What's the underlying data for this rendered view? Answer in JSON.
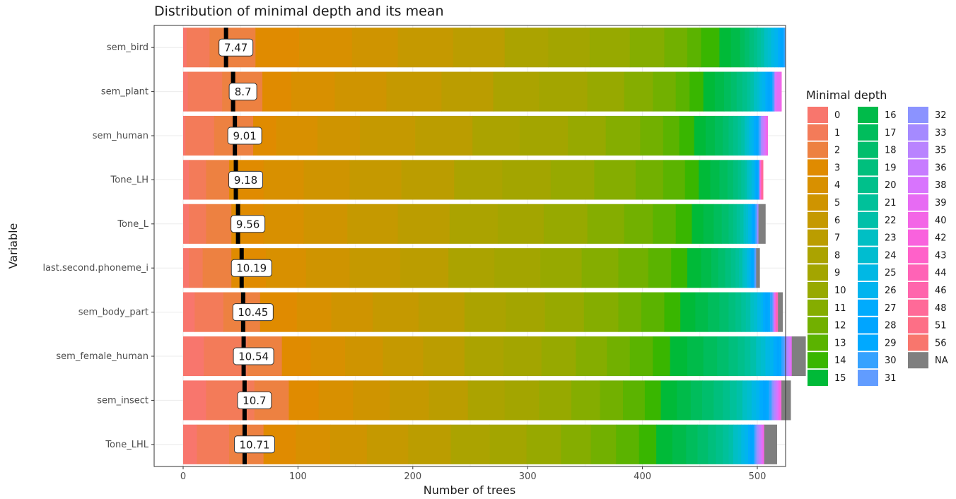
{
  "chart_data": {
    "type": "bar",
    "orientation": "horizontal",
    "stacked": true,
    "title": "Distribution of minimal depth and its mean",
    "xlabel": "Number of trees",
    "ylabel": "Variable",
    "xlim": [
      0,
      500
    ],
    "xticks": [
      0,
      100,
      200,
      300,
      400,
      500
    ],
    "grid": true,
    "legend": {
      "title": "Minimal depth",
      "placement": "right",
      "columns": [
        [
          "0",
          "1",
          "2",
          "3",
          "4",
          "5",
          "6",
          "7",
          "8",
          "9",
          "10",
          "11",
          "12",
          "13",
          "14",
          "15"
        ],
        [
          "16",
          "17",
          "18",
          "19",
          "20",
          "21",
          "22",
          "23",
          "24",
          "25",
          "26",
          "27",
          "28",
          "29",
          "30",
          "31"
        ],
        [
          "32",
          "33",
          "35",
          "36",
          "38",
          "39",
          "40",
          "42",
          "43",
          "44",
          "46",
          "48",
          "51",
          "56",
          "NA"
        ]
      ]
    },
    "colors": {
      "0": "#F8766D",
      "1": "#F37B59",
      "2": "#ED8141",
      "3": "#E08B00",
      "4": "#D89000",
      "5": "#CF9400",
      "6": "#C59900",
      "7": "#BB9D00",
      "8": "#ABA300",
      "9": "#A3A500",
      "10": "#97A900",
      "11": "#85AD00",
      "12": "#72B000",
      "13": "#5BB300",
      "14": "#39B600",
      "15": "#00BA38",
      "16": "#00BB4A",
      "17": "#00BD5C",
      "18": "#00BE6C",
      "19": "#00BF7D",
      "20": "#00C08B",
      "21": "#00C19A",
      "22": "#00C0A9",
      "23": "#00BFC4",
      "24": "#00BDD0",
      "25": "#00B8E4",
      "26": "#00B4EF",
      "27": "#00ABFD",
      "28": "#00A5FF",
      "29": "#00A9FF",
      "30": "#35A2FF",
      "31": "#619CFF",
      "32": "#8B93FF",
      "33": "#A58AFF",
      "35": "#B983FF",
      "36": "#C77CFF",
      "38": "#D874FD",
      "39": "#E76BF3",
      "40": "#F365E6",
      "42": "#F962DD",
      "43": "#FF61C9",
      "44": "#FF63B6",
      "46": "#FF65AC",
      "48": "#FF6A98",
      "51": "#FD6F86",
      "56": "#F8766D",
      "NA": "#7F7F7F"
    },
    "categories": [
      "sem_bird",
      "sem_plant",
      "sem_human",
      "Tone_LH",
      "Tone_L",
      "last.second.phoneme_i",
      "sem_body_part",
      "sem_female_human",
      "sem_insect",
      "Tone_LHL"
    ],
    "means": [
      7.47,
      8.7,
      9.01,
      9.18,
      9.56,
      10.19,
      10.45,
      10.54,
      10.7,
      10.71
    ],
    "mean_labels": [
      "7.47",
      "8.7",
      "9.01",
      "9.18",
      "9.56",
      "10.19",
      "10.45",
      "10.54",
      "10.7",
      "10.71"
    ],
    "series": [
      {
        "category": "sem_bird",
        "counts": {
          "0": 3,
          "1": 20,
          "2": 40,
          "3": 38,
          "4": 46,
          "5": 40,
          "6": 48,
          "7": 45,
          "8": 38,
          "9": 36,
          "10": 35,
          "11": 30,
          "12": 20,
          "13": 12,
          "14": 16,
          "15": 10,
          "16": 8,
          "17": 4,
          "18": 4,
          "19": 4,
          "20": 3,
          "21": 3,
          "22": 3,
          "23": 3,
          "24": 3,
          "25": 3,
          "26": 3,
          "27": 2,
          "28": 2,
          "29": 1,
          "30": 1
        }
      },
      {
        "category": "sem_plant",
        "counts": {
          "0": 4,
          "1": 30,
          "2": 35,
          "3": 25,
          "4": 38,
          "5": 45,
          "6": 48,
          "7": 45,
          "8": 40,
          "9": 42,
          "10": 32,
          "11": 25,
          "12": 20,
          "13": 12,
          "14": 12,
          "15": 10,
          "16": 8,
          "17": 6,
          "18": 5,
          "19": 5,
          "20": 4,
          "21": 3,
          "22": 3,
          "23": 3,
          "24": 2,
          "25": 2,
          "26": 3,
          "27": 2,
          "28": 2,
          "29": 2,
          "30": 1,
          "31": 1,
          "38": 2,
          "39": 3,
          "40": 1
        }
      },
      {
        "category": "sem_human",
        "counts": {
          "0": 2,
          "1": 25,
          "2": 34,
          "3": 20,
          "4": 36,
          "5": 37,
          "6": 48,
          "7": 50,
          "8": 41,
          "9": 42,
          "10": 33,
          "11": 30,
          "12": 20,
          "13": 14,
          "14": 13,
          "15": 10,
          "16": 8,
          "17": 7,
          "18": 5,
          "19": 4,
          "20": 4,
          "21": 3,
          "22": 3,
          "23": 2,
          "24": 2,
          "25": 2,
          "26": 2,
          "27": 2,
          "28": 1,
          "29": 1,
          "30": 1,
          "31": 1,
          "33": 1,
          "35": 1,
          "36": 1,
          "38": 1,
          "39": 1,
          "40": 1
        }
      },
      {
        "category": "Tone_LH",
        "counts": {
          "0": 5,
          "1": 15,
          "2": 20,
          "3": 30,
          "4": 35,
          "5": 40,
          "6": 45,
          "7": 46,
          "8": 42,
          "9": 42,
          "10": 38,
          "11": 36,
          "12": 24,
          "13": 19,
          "14": 12,
          "15": 10,
          "16": 8,
          "17": 7,
          "18": 5,
          "19": 4,
          "20": 3,
          "21": 3,
          "22": 2,
          "23": 2,
          "24": 2,
          "25": 2,
          "26": 1,
          "27": 1,
          "28": 1,
          "29": 1,
          "30": 1,
          "40": 1,
          "46": 1,
          "48": 1
        }
      },
      {
        "category": "Tone_L",
        "counts": {
          "0": 5,
          "1": 15,
          "2": 22,
          "3": 28,
          "4": 35,
          "5": 38,
          "6": 44,
          "7": 45,
          "8": 42,
          "9": 40,
          "10": 38,
          "11": 32,
          "12": 25,
          "13": 20,
          "14": 14,
          "15": 10,
          "16": 9,
          "17": 7,
          "18": 6,
          "19": 4,
          "20": 3,
          "21": 3,
          "22": 3,
          "23": 2,
          "24": 2,
          "25": 2,
          "26": 1,
          "27": 1,
          "28": 1,
          "29": 1,
          "30": 1,
          "31": 1,
          "33": 1,
          "NA": 6
        }
      },
      {
        "category": "last.second.phoneme_i",
        "counts": {
          "0": 5,
          "1": 12,
          "2": 25,
          "3": 30,
          "4": 35,
          "5": 38,
          "6": 44,
          "7": 42,
          "8": 40,
          "9": 40,
          "10": 36,
          "11": 32,
          "12": 26,
          "13": 20,
          "14": 14,
          "15": 12,
          "16": 9,
          "17": 6,
          "18": 6,
          "19": 5,
          "20": 4,
          "21": 3,
          "22": 3,
          "23": 2,
          "24": 2,
          "25": 2,
          "26": 1,
          "27": 1,
          "28": 1,
          "29": 1,
          "30": 1,
          "31": 1,
          "NA": 3
        }
      },
      {
        "category": "sem_body_part",
        "counts": {
          "0": 10,
          "1": 25,
          "2": 32,
          "3": 32,
          "4": 30,
          "5": 36,
          "6": 40,
          "7": 40,
          "8": 36,
          "9": 34,
          "10": 34,
          "11": 30,
          "12": 20,
          "13": 20,
          "14": 14,
          "15": 13,
          "16": 11,
          "17": 10,
          "18": 8,
          "19": 6,
          "20": 5,
          "21": 4,
          "22": 4,
          "23": 3,
          "24": 3,
          "25": 3,
          "26": 2,
          "27": 2,
          "28": 2,
          "29": 2,
          "30": 2,
          "31": 1,
          "36": 1,
          "40": 1,
          "44": 2,
          "NA": 4
        }
      },
      {
        "category": "sem_female_human",
        "counts": {
          "0": 18,
          "1": 38,
          "2": 30,
          "3": 25,
          "4": 30,
          "5": 33,
          "6": 35,
          "7": 36,
          "8": 34,
          "9": 33,
          "10": 30,
          "11": 27,
          "12": 20,
          "13": 20,
          "14": 15,
          "15": 15,
          "16": 14,
          "17": 12,
          "18": 10,
          "19": 8,
          "20": 6,
          "21": 5,
          "22": 5,
          "23": 4,
          "24": 4,
          "25": 4,
          "26": 3,
          "27": 3,
          "28": 2,
          "29": 2,
          "30": 2,
          "31": 1,
          "32": 1,
          "33": 1,
          "35": 1,
          "36": 1,
          "38": 1,
          "39": 1,
          "NA": 12
        }
      },
      {
        "category": "sem_insect",
        "counts": {
          "0": 20,
          "1": 42,
          "2": 30,
          "3": 26,
          "4": 30,
          "5": 32,
          "6": 34,
          "7": 34,
          "8": 32,
          "9": 30,
          "10": 28,
          "11": 25,
          "12": 20,
          "13": 19,
          "14": 14,
          "15": 14,
          "16": 12,
          "17": 10,
          "18": 10,
          "19": 8,
          "20": 6,
          "21": 6,
          "22": 5,
          "23": 4,
          "24": 4,
          "25": 4,
          "26": 3,
          "27": 3,
          "28": 3,
          "29": 2,
          "30": 2,
          "31": 1,
          "32": 1,
          "33": 1,
          "35": 1,
          "36": 1,
          "38": 1,
          "39": 1,
          "40": 1,
          "42": 1,
          "NA": 8
        }
      },
      {
        "category": "Tone_LHL",
        "counts": {
          "0": 12,
          "1": 28,
          "2": 30,
          "3": 28,
          "4": 30,
          "5": 32,
          "6": 36,
          "7": 37,
          "8": 34,
          "9": 32,
          "10": 30,
          "11": 26,
          "12": 22,
          "13": 20,
          "14": 15,
          "15": 14,
          "16": 12,
          "17": 10,
          "18": 9,
          "19": 7,
          "20": 6,
          "21": 5,
          "22": 4,
          "23": 4,
          "24": 3,
          "25": 3,
          "26": 3,
          "27": 2,
          "28": 2,
          "29": 1,
          "30": 1,
          "31": 1,
          "32": 1,
          "33": 1,
          "35": 1,
          "36": 1,
          "38": 1,
          "39": 1,
          "40": 1,
          "NA": 11
        }
      }
    ]
  }
}
